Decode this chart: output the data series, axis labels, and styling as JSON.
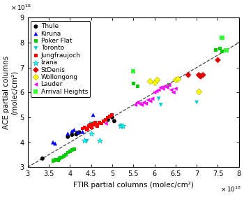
{
  "xlabel": "FTIR partial columns (molec/cm²)",
  "ylabel": "ACE partial columns\n(molec/cm²)",
  "xlim": [
    3e+18,
    8e+18
  ],
  "ylim": [
    3e+18,
    9e+18
  ],
  "dashed_line_x": [
    3e+18,
    8.5e+18
  ],
  "dashed_line_y": [
    3e+18,
    8.5e+18
  ],
  "stations": {
    "Thule": {
      "color": "#000000",
      "marker": "o",
      "x": [
        3.35e+18,
        3.95e+18,
        4.05e+18,
        4.15e+18,
        4.18e+18,
        4.22e+18,
        4.9e+18,
        5e+18,
        5.05e+18
      ],
      "y": [
        3.35e+18,
        4.22e+18,
        4.3e+18,
        4.32e+18,
        4.38e+18,
        4.4e+18,
        4.9e+18,
        5e+18,
        4.85e+18
      ]
    },
    "Kiruna": {
      "color": "#0000ff",
      "marker": "^",
      "x": [
        3.6e+18,
        3.65e+18,
        3.95e+18,
        4.05e+18,
        4.1e+18,
        4.2e+18,
        4.3e+18,
        4.55e+18
      ],
      "y": [
        4e+18,
        3.95e+18,
        4.35e+18,
        4.45e+18,
        4.5e+18,
        4.4e+18,
        4.42e+18,
        5.1e+18
      ]
    },
    "Poker Flat": {
      "color": "#00cc00",
      "marker": "s",
      "x": [
        3.6e+18,
        3.62e+18,
        3.65e+18,
        3.68e+18,
        3.7e+18,
        3.72e+18,
        3.74e+18,
        3.75e+18,
        3.78e+18,
        3.8e+18,
        3.85e+18,
        3.9e+18,
        3.95e+18,
        4e+18,
        4.05e+18,
        4.1e+18,
        5.5e+18,
        5.6e+18,
        6.35e+18,
        7.45e+18,
        7.55e+18,
        7.6e+18
      ],
      "y": [
        3.25e+18,
        3.28e+18,
        3.3e+18,
        3.32e+18,
        3.3e+18,
        3.28e+18,
        3.32e+18,
        3.35e+18,
        3.38e+18,
        3.4e+18,
        3.45e+18,
        3.5e+18,
        3.6e+18,
        3.65e+18,
        3.7e+18,
        3.72e+18,
        6.35e+18,
        6.25e+18,
        6.3e+18,
        7.7e+18,
        7.75e+18,
        7.65e+18
      ]
    },
    "Toronto": {
      "color": "#00cccc",
      "marker": "v",
      "x": [
        4.4e+18,
        4.5e+18,
        5.2e+18,
        5.25e+18,
        6.1e+18,
        6.15e+18,
        7e+18
      ],
      "y": [
        4.05e+18,
        4.75e+18,
        4.65e+18,
        4.6e+18,
        5.75e+18,
        5.5e+18,
        5.6e+18
      ]
    },
    "Jungfraujoch": {
      "color": "#ff0000",
      "marker": "s",
      "x": [
        4.3e+18,
        4.35e+18,
        4.4e+18,
        4.42e+18,
        4.45e+18,
        4.48e+18,
        4.5e+18,
        4.52e+18,
        4.55e+18,
        4.58e+18,
        4.6e+18,
        4.62e+18,
        4.65e+18,
        4.7e+18,
        4.75e+18,
        4.8e+18,
        4.85e+18,
        4.9e+18,
        4.95e+18,
        5e+18
      ],
      "y": [
        4.55e+18,
        4.6e+18,
        4.5e+18,
        4.55e+18,
        4.65e+18,
        4.7e+18,
        4.65e+18,
        4.6e+18,
        4.75e+18,
        4.7e+18,
        4.8e+18,
        4.72e+18,
        4.65e+18,
        4.8e+18,
        4.75e+18,
        4.85e+18,
        4.9e+18,
        5e+18,
        5.05e+18,
        5.1e+18
      ]
    },
    "Izana": {
      "color": "#00ffff",
      "marker": "*",
      "x": [
        4.35e+18,
        4.5e+18,
        4.7e+18,
        5.2e+18,
        5.25e+18
      ],
      "y": [
        4.08e+18,
        4.35e+18,
        4.08e+18,
        4.65e+18,
        4.65e+18
      ]
    },
    "StDenis": {
      "color": "#dd0000",
      "marker": "D",
      "x": [
        6.8e+18,
        7.05e+18,
        7.08e+18,
        7.1e+18,
        7.15e+18,
        7.5e+18
      ],
      "y": [
        6.7e+18,
        6.7e+18,
        6.65e+18,
        6.65e+18,
        6.7e+18,
        7.3e+18
      ]
    },
    "Wollongong": {
      "color": "#ffff00",
      "marker": "D",
      "x": [
        5.9e+18,
        6e+18,
        6.05e+18,
        6.5e+18,
        6.55e+18,
        7.05e+18
      ],
      "y": [
        6.45e+18,
        6.4e+18,
        6.5e+18,
        6.5e+18,
        6.55e+18,
        6.05e+18
      ]
    },
    "Lauder": {
      "color": "#ff00ff",
      "marker": "<",
      "x": [
        5.55e+18,
        5.6e+18,
        5.65e+18,
        5.7e+18,
        5.75e+18,
        5.8e+18,
        5.85e+18,
        5.9e+18,
        5.95e+18,
        6e+18,
        6.05e+18,
        6.1e+18,
        6.15e+18,
        6.2e+18,
        6.25e+18,
        6.3e+18,
        6.35e+18,
        6.4e+18,
        6.45e+18,
        6.5e+18,
        4.85e+18
      ],
      "y": [
        5.5e+18,
        5.6e+18,
        5.55e+18,
        5.5e+18,
        5.6e+18,
        5.55e+18,
        5.7e+18,
        5.65e+18,
        5.75e+18,
        6e+18,
        6.05e+18,
        6.1e+18,
        6.2e+18,
        6.15e+18,
        6.25e+18,
        6.2e+18,
        6.3e+18,
        6.1e+18,
        6e+18,
        6.15e+18,
        4.75e+18
      ]
    },
    "Arrival Heights": {
      "color": "#33ff33",
      "marker": "s",
      "x": [
        5.5e+18,
        7.6e+18,
        7.7e+18
      ],
      "y": [
        6.85e+18,
        8.2e+18,
        7.7e+18
      ]
    }
  },
  "legend_fontsize": 6.5,
  "tick_fontsize": 7,
  "label_fontsize": 7.5,
  "marker_sizes": {
    "Thule": 18,
    "Kiruna": 18,
    "Poker Flat": 12,
    "Toronto": 18,
    "Jungfraujoch": 12,
    "Izana": 40,
    "StDenis": 20,
    "Wollongong": 20,
    "Lauder": 18,
    "Arrival Heights": 20
  }
}
